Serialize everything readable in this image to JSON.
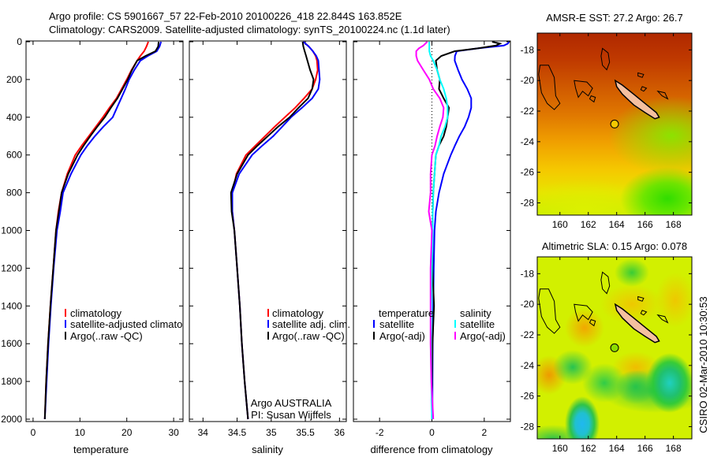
{
  "figure": {
    "title_line1": "Argo profile: CS 5901667_57 22-Feb-2010 20100226_418 22.844S 163.852E",
    "title_line2": "Climatology: CARS2009. Satellite-adjusted climatology: synTS_20100224.nc (1.1d later)",
    "footer_stamp": "CSIRO 02-Mar-2010 10:30:53",
    "annotation_line1": "Argo AUSTRALIA",
    "annotation_line2": "PI: Susan Wijffels"
  },
  "legends": {
    "temperature": [
      "climatology",
      "satellite-adjusted climatology",
      "Argo(..raw -QC)"
    ],
    "salinity": [
      "climatology",
      "satellite adj. clim.",
      "Argo(..raw -QC)"
    ],
    "difference_temperature_header": "temperature",
    "difference_temperature": [
      "satellite",
      "Argo(-adj)"
    ],
    "difference_salinity_header": "salinity",
    "difference_salinity": [
      "satellite",
      "Argo(-adj)"
    ]
  },
  "colors": {
    "climatology": "#ff0000",
    "satellite": "#0000ff",
    "argo": "#000000",
    "sal_satellite": "#00ffff",
    "sal_argo": "#ff00ff"
  },
  "chart_data": [
    {
      "type": "line",
      "name": "temperature",
      "xlabel": "temperature",
      "ylabel": "",
      "xlim": [
        -1.5,
        32
      ],
      "ylim": [
        2010,
        0
      ],
      "xticks": [
        0,
        10,
        20,
        30
      ],
      "yticks": [
        0,
        200,
        400,
        600,
        800,
        1000,
        1200,
        1400,
        1600,
        1800,
        2000
      ],
      "depth": [
        0,
        25,
        50,
        75,
        100,
        150,
        200,
        250,
        300,
        350,
        400,
        450,
        500,
        550,
        600,
        700,
        800,
        900,
        1000,
        1200,
        1400,
        1600,
        1800,
        2000
      ],
      "series": [
        {
          "name": "climatology",
          "color": "#ff0000",
          "values": [
            24.6,
            24.2,
            23.7,
            22.9,
            22.2,
            21.0,
            20.0,
            18.9,
            17.8,
            16.3,
            14.9,
            13.4,
            11.9,
            10.4,
            9.0,
            7.3,
            6.1,
            5.4,
            4.9,
            4.3,
            3.7,
            3.2,
            2.8,
            2.5
          ]
        },
        {
          "name": "satellite-adjusted climatology",
          "color": "#0000ff",
          "values": [
            27.3,
            27.0,
            26.4,
            24.5,
            22.9,
            21.6,
            20.5,
            19.7,
            18.8,
            17.9,
            17.0,
            15.0,
            13.2,
            11.6,
            10.2,
            8.1,
            6.4,
            5.8,
            5.1,
            4.4,
            3.8,
            3.3,
            2.9,
            2.5
          ]
        },
        {
          "name": "Argo(..raw -QC)",
          "color": "#000000",
          "values": [
            26.8,
            26.7,
            26.1,
            24.0,
            22.2,
            21.1,
            20.2,
            19.1,
            18.0,
            16.6,
            15.3,
            13.7,
            12.2,
            10.8,
            9.5,
            7.5,
            6.1,
            5.5,
            4.9,
            4.3,
            3.7,
            3.2,
            2.8,
            2.5
          ]
        }
      ]
    },
    {
      "type": "line",
      "name": "salinity",
      "xlabel": "salinity",
      "xlim": [
        33.8,
        36.1
      ],
      "ylim": [
        2010,
        0
      ],
      "xticks": [
        34,
        34.5,
        35,
        35.5,
        36
      ],
      "depth": [
        0,
        25,
        50,
        75,
        100,
        150,
        200,
        250,
        300,
        350,
        400,
        450,
        500,
        550,
        600,
        700,
        800,
        900,
        1000,
        1200,
        1400,
        1600,
        1800,
        2000
      ],
      "series": [
        {
          "name": "climatology",
          "color": "#ff0000",
          "values": [
            35.47,
            35.55,
            35.61,
            35.65,
            35.67,
            35.68,
            35.65,
            35.6,
            35.48,
            35.35,
            35.2,
            35.05,
            34.91,
            34.77,
            34.63,
            34.49,
            34.43,
            34.43,
            34.46,
            34.5,
            34.54,
            34.57,
            34.61,
            34.66
          ]
        },
        {
          "name": "satellite adj. clim.",
          "color": "#0000ff",
          "values": [
            35.47,
            35.55,
            35.61,
            35.66,
            35.69,
            35.7,
            35.71,
            35.69,
            35.6,
            35.45,
            35.29,
            35.16,
            35.03,
            34.87,
            34.72,
            34.53,
            34.43,
            34.43,
            34.46,
            34.5,
            34.54,
            34.57,
            34.61,
            34.66
          ]
        },
        {
          "name": "Argo(..raw -QC)",
          "color": "#000000",
          "values": [
            35.46,
            35.47,
            35.49,
            35.51,
            35.53,
            35.57,
            35.62,
            35.6,
            35.54,
            35.4,
            35.27,
            35.1,
            34.95,
            34.8,
            34.66,
            34.5,
            34.41,
            34.42,
            34.46,
            34.5,
            34.54,
            34.57,
            34.61,
            34.66
          ]
        }
      ]
    },
    {
      "type": "line",
      "name": "difference",
      "xlabel": "difference from climatology",
      "xlim": [
        -3.0,
        3.0
      ],
      "ylim": [
        2010,
        0
      ],
      "xticks": [
        -2,
        0,
        2
      ],
      "zero_line_depth_max": 1000,
      "depth": [
        0,
        10,
        20,
        35,
        50,
        75,
        100,
        150,
        200,
        250,
        300,
        350,
        400,
        450,
        500,
        550,
        600,
        700,
        800,
        900,
        1000,
        1200,
        1400,
        1600,
        1800,
        2000
      ],
      "series": [
        {
          "name": "temperature satellite",
          "color": "#0000ff",
          "values": [
            2.95,
            2.9,
            2.75,
            1.75,
            0.95,
            0.88,
            0.87,
            1.0,
            1.15,
            1.35,
            1.5,
            1.5,
            1.4,
            1.25,
            1.05,
            0.88,
            0.72,
            0.45,
            0.27,
            0.15,
            0.1,
            0.07,
            0.05,
            0.03,
            0.02,
            0.02
          ]
        },
        {
          "name": "temperature Argo(-adj)",
          "color": "#000000",
          "values": [
            2.3,
            2.6,
            2.45,
            1.75,
            0.87,
            0.36,
            0.15,
            0.2,
            0.3,
            0.27,
            0.45,
            0.65,
            0.6,
            0.55,
            0.45,
            0.27,
            0.15,
            0.1,
            0.05,
            0.03,
            0.02,
            0.02,
            0.08,
            0.02,
            0.0,
            0.0
          ]
        },
        {
          "name": "salinity satellite",
          "color": "#00ffff",
          "values": [
            -0.1,
            -0.1,
            -0.1,
            -0.1,
            -0.1,
            -0.05,
            0.05,
            0.2,
            0.3,
            0.45,
            0.55,
            0.6,
            0.6,
            0.5,
            0.35,
            0.27,
            0.15,
            0.1,
            0.05,
            0.03,
            0.03,
            0.0,
            -0.02,
            -0.03,
            -0.02,
            0.0
          ]
        },
        {
          "name": "salinity Argo(-adj)",
          "color": "#ff00ff",
          "values": [
            -0.18,
            -0.25,
            -0.33,
            -0.5,
            -0.6,
            -0.6,
            -0.55,
            -0.33,
            -0.1,
            0.05,
            0.3,
            0.45,
            0.42,
            0.3,
            0.2,
            0.12,
            0.0,
            -0.05,
            -0.05,
            -0.12,
            0.0,
            -0.05,
            -0.05,
            -0.05,
            -0.02,
            0.05
          ]
        }
      ]
    },
    {
      "type": "heatmap",
      "name": "sst-map",
      "title": "AMSR-E SST: 27.2  Argo: 26.7",
      "xlim": [
        158.4,
        169.3
      ],
      "ylim": [
        -28.8,
        -16.9
      ],
      "xticks": [
        160,
        162,
        164,
        166,
        168
      ],
      "yticks": [
        -18,
        -20,
        -22,
        -24,
        -26,
        -28
      ],
      "marker": {
        "lon": 163.852,
        "lat": -22.844,
        "color": "#f5c800"
      }
    },
    {
      "type": "heatmap",
      "name": "sla-map",
      "title": "Altimetric SLA: 0.15  Argo: 0.078",
      "xlim": [
        158.4,
        169.3
      ],
      "ylim": [
        -28.8,
        -16.9
      ],
      "xticks": [
        160,
        162,
        164,
        166,
        168
      ],
      "yticks": [
        -18,
        -20,
        -22,
        -24,
        -26,
        -28
      ],
      "marker": {
        "lon": 163.852,
        "lat": -22.844,
        "color": "#8cdc00"
      }
    }
  ]
}
